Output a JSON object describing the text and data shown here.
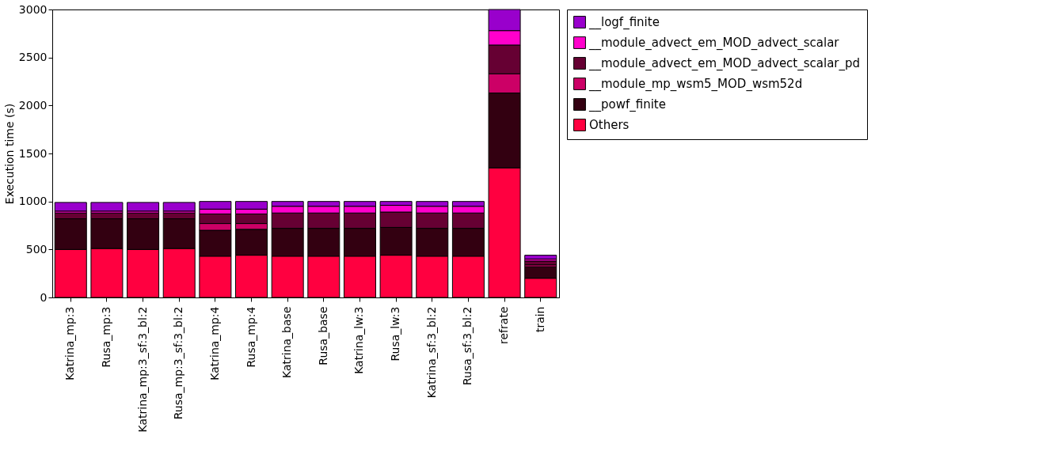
{
  "chart_data": {
    "type": "bar",
    "stacked": true,
    "ylabel": "Execution time (s)",
    "ylim": [
      0,
      3000
    ],
    "yticks": [
      0,
      500,
      1000,
      1500,
      2000,
      2500,
      3000
    ],
    "grid": false,
    "legend": "right",
    "categories": [
      "Katrina_mp:3",
      "Rusa_mp:3",
      "Katrina_mp:3_sf:3_bl:2",
      "Rusa_mp:3_sf:3_bl:2",
      "Katrina_mp:4",
      "Rusa_mp:4",
      "Katrina_base",
      "Rusa_base",
      "Katrina_lw:3",
      "Rusa_lw:3",
      "Katrina_sf:3_bl:2",
      "Rusa_sf:3_bl:2",
      "refrate",
      "train"
    ],
    "series": [
      {
        "name": "Others",
        "color": "#ff0040",
        "values": [
          500,
          510,
          500,
          510,
          430,
          440,
          430,
          430,
          430,
          440,
          430,
          430,
          1350,
          200
        ]
      },
      {
        "name": "__powf_finite",
        "color": "#330011",
        "values": [
          320,
          310,
          320,
          310,
          270,
          270,
          290,
          290,
          290,
          290,
          290,
          290,
          780,
          120
        ]
      },
      {
        "name": "__module_mp_wsm5_MOD_wsm52d",
        "color": "#cc0066",
        "values": [
          null,
          null,
          null,
          null,
          70,
          60,
          null,
          null,
          null,
          null,
          null,
          null,
          200,
          20
        ]
      },
      {
        "name": "__module_advect_em_MOD_advect_scalar_pd",
        "color": "#660033",
        "values": [
          60,
          60,
          60,
          60,
          100,
          100,
          160,
          160,
          160,
          160,
          160,
          160,
          300,
          40
        ]
      },
      {
        "name": "__module_advect_em_MOD_advect_scalar",
        "color": "#ff00cc",
        "values": [
          20,
          20,
          20,
          20,
          50,
          50,
          70,
          70,
          70,
          70,
          70,
          70,
          150,
          20
        ]
      },
      {
        "name": "__logf_finite",
        "color": "#9900cc",
        "values": [
          90,
          90,
          90,
          90,
          80,
          80,
          50,
          50,
          50,
          40,
          50,
          50,
          220,
          40
        ]
      }
    ]
  }
}
